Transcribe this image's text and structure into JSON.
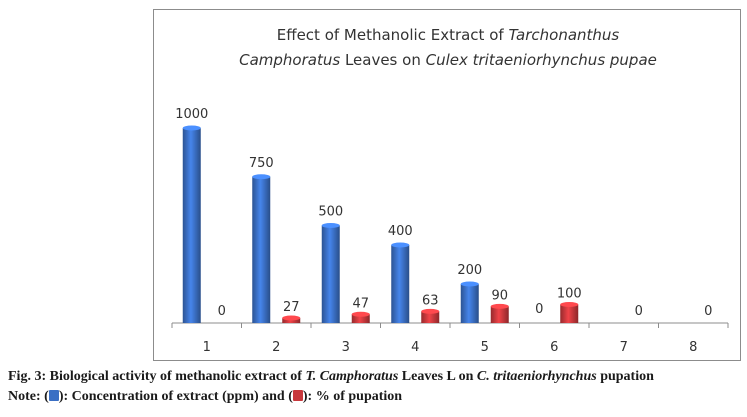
{
  "chart_data": {
    "type": "bar",
    "title": {
      "line1_plain": "Effect of Methanolic Extract of ",
      "line1_italic": "Tarchonanthus",
      "line2_italic_a": "Camphoratus",
      "line2_plain": " Leaves on ",
      "line2_italic_b": "Culex tritaeniorhynchus pupae"
    },
    "categories": [
      "1",
      "2",
      "3",
      "4",
      "5",
      "6",
      "7",
      "8"
    ],
    "series": [
      {
        "name": "Concentration of extract (ppm)",
        "color": "#3a6fc4",
        "values": [
          1000,
          750,
          500,
          400,
          200,
          0,
          null,
          null
        ],
        "labels": [
          "1000",
          "750",
          "500",
          "400",
          "200",
          "0",
          "",
          ""
        ]
      },
      {
        "name": "% of pupation",
        "color": "#c8383c",
        "values": [
          0,
          27,
          47,
          63,
          90,
          100,
          0,
          0
        ],
        "labels": [
          "0",
          "27",
          "47",
          "63",
          "90",
          "100",
          "0",
          "0"
        ]
      }
    ],
    "xlabel": "",
    "ylabel": "",
    "ylim": [
      0,
      1000
    ],
    "grid": false,
    "legend": "none"
  },
  "caption": {
    "fig_label": "Fig. 3: Biological activity of methanolic extract of ",
    "species_a": "T. Camphoratus",
    "mid": " Leaves L on ",
    "species_b": "C. tritaeniorhynchus",
    "tail": " pupation",
    "note_prefix": "Note: (",
    "note_blue": "): Concentration of extract (ppm) and (",
    "note_red": "): % of pupation"
  }
}
